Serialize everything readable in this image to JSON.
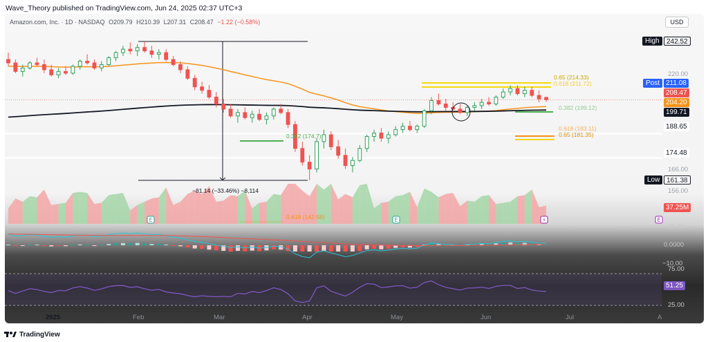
{
  "header": {
    "publisher_line": "Wave_Theory published on TradingView.com, Jun 24, 2025 02:37 UTC+3"
  },
  "symbol": {
    "name": "Amazon.com, Inc. · 1D · NASDAQ",
    "open": "O209.79",
    "high": "H210.39",
    "low": "L207.31",
    "close": "C208.47",
    "change": "−1.22 (−0.58%)"
  },
  "currency_button": "USD",
  "price_tags": {
    "high_label": "High",
    "high_value": "242.52",
    "post_label": "Post",
    "post_value": "211.08",
    "last": "208.47",
    "ema50": "204.20",
    "ema200": "199.71",
    "level_188": "188.65",
    "level_174": "174.48",
    "low_label": "Low",
    "low_value": "161.38",
    "volume": "37.25M",
    "rsi": "51.25"
  },
  "price_axis_ticks": [
    "220.00",
    "166.00",
    "156.00"
  ],
  "macd_axis_ticks": [
    "10.00",
    "0.0000",
    "−10.00"
  ],
  "rsi_axis_ticks": [
    "75.00",
    "25.00"
  ],
  "annotations": {
    "measure": "−81.14 (−33.46%) −8,114",
    "fib_0382": "0.382 (174.7)",
    "fib_0618": "0.618 (142.58)",
    "fib_065_top": "0.65 (214.33)",
    "fib_0618_top": "0.618 (211.72)",
    "fib_0382_mid": "0.382 (199.12)",
    "fib_0618_low": "0.618 (183.11)",
    "fib_065_low": "0.65 (181.35)"
  },
  "time_axis": [
    "2025",
    "Feb",
    "Mar",
    "Apr",
    "May",
    "Jun",
    "Jul",
    "A"
  ],
  "footer": {
    "brand": "TradingView"
  },
  "colors": {
    "up": "#26a69a",
    "up_bar": "#2e9e5b",
    "down": "#ef5350",
    "ema50": "#f7931a",
    "ema200": "#131722",
    "rsi": "#7e57c2",
    "post": "#2962ff",
    "fib_yellow": "#f5d90a",
    "fib_orange": "#f7931a",
    "fib_green": "#4caf50"
  },
  "chart_data": {
    "type": "candlestick",
    "title": "Amazon.com, Inc. · 1D · NASDAQ",
    "ylim": [
      150,
      250
    ],
    "support_resistance": [
      242.52,
      188.65,
      174.48,
      161.38
    ],
    "candles": [
      {
        "o": 232,
        "h": 236,
        "l": 228,
        "c": 230
      },
      {
        "o": 230,
        "h": 232,
        "l": 224,
        "c": 225
      },
      {
        "o": 225,
        "h": 229,
        "l": 222,
        "c": 227
      },
      {
        "o": 227,
        "h": 231,
        "l": 226,
        "c": 230
      },
      {
        "o": 230,
        "h": 233,
        "l": 228,
        "c": 229
      },
      {
        "o": 229,
        "h": 232,
        "l": 224,
        "c": 226
      },
      {
        "o": 226,
        "h": 229,
        "l": 222,
        "c": 223
      },
      {
        "o": 223,
        "h": 227,
        "l": 221,
        "c": 225
      },
      {
        "o": 225,
        "h": 228,
        "l": 223,
        "c": 224
      },
      {
        "o": 224,
        "h": 229,
        "l": 223,
        "c": 228
      },
      {
        "o": 228,
        "h": 232,
        "l": 226,
        "c": 231
      },
      {
        "o": 231,
        "h": 235,
        "l": 229,
        "c": 230
      },
      {
        "o": 230,
        "h": 232,
        "l": 226,
        "c": 227
      },
      {
        "o": 227,
        "h": 231,
        "l": 225,
        "c": 229
      },
      {
        "o": 229,
        "h": 234,
        "l": 228,
        "c": 233
      },
      {
        "o": 233,
        "h": 237,
        "l": 231,
        "c": 236
      },
      {
        "o": 236,
        "h": 240,
        "l": 234,
        "c": 238
      },
      {
        "o": 238,
        "h": 242,
        "l": 235,
        "c": 237
      },
      {
        "o": 237,
        "h": 241,
        "l": 234,
        "c": 239
      },
      {
        "o": 239,
        "h": 242.5,
        "l": 236,
        "c": 237
      },
      {
        "o": 237,
        "h": 240,
        "l": 233,
        "c": 235
      },
      {
        "o": 235,
        "h": 238,
        "l": 232,
        "c": 236
      },
      {
        "o": 236,
        "h": 238,
        "l": 231,
        "c": 232
      },
      {
        "o": 232,
        "h": 234,
        "l": 228,
        "c": 229
      },
      {
        "o": 229,
        "h": 231,
        "l": 224,
        "c": 226
      },
      {
        "o": 226,
        "h": 228,
        "l": 220,
        "c": 221
      },
      {
        "o": 221,
        "h": 223,
        "l": 214,
        "c": 216
      },
      {
        "o": 216,
        "h": 219,
        "l": 212,
        "c": 214
      },
      {
        "o": 214,
        "h": 217,
        "l": 209,
        "c": 210
      },
      {
        "o": 210,
        "h": 213,
        "l": 204,
        "c": 206
      },
      {
        "o": 206,
        "h": 209,
        "l": 201,
        "c": 203
      },
      {
        "o": 203,
        "h": 206,
        "l": 198,
        "c": 199
      },
      {
        "o": 199,
        "h": 203,
        "l": 195,
        "c": 201
      },
      {
        "o": 201,
        "h": 204,
        "l": 197,
        "c": 198
      },
      {
        "o": 198,
        "h": 202,
        "l": 195,
        "c": 200
      },
      {
        "o": 200,
        "h": 203,
        "l": 196,
        "c": 197
      },
      {
        "o": 197,
        "h": 201,
        "l": 194,
        "c": 199
      },
      {
        "o": 199,
        "h": 204,
        "l": 197,
        "c": 203
      },
      {
        "o": 203,
        "h": 206,
        "l": 200,
        "c": 201
      },
      {
        "o": 201,
        "h": 203,
        "l": 192,
        "c": 194
      },
      {
        "o": 194,
        "h": 196,
        "l": 178,
        "c": 180
      },
      {
        "o": 180,
        "h": 184,
        "l": 170,
        "c": 172
      },
      {
        "o": 172,
        "h": 176,
        "l": 161.4,
        "c": 168
      },
      {
        "o": 168,
        "h": 186,
        "l": 166,
        "c": 184
      },
      {
        "o": 184,
        "h": 191,
        "l": 180,
        "c": 188
      },
      {
        "o": 188,
        "h": 190,
        "l": 179,
        "c": 181
      },
      {
        "o": 181,
        "h": 185,
        "l": 174,
        "c": 176
      },
      {
        "o": 176,
        "h": 180,
        "l": 168,
        "c": 170
      },
      {
        "o": 170,
        "h": 175,
        "l": 166,
        "c": 173
      },
      {
        "o": 173,
        "h": 182,
        "l": 172,
        "c": 180
      },
      {
        "o": 180,
        "h": 188,
        "l": 178,
        "c": 187
      },
      {
        "o": 187,
        "h": 191,
        "l": 184,
        "c": 189
      },
      {
        "o": 189,
        "h": 192,
        "l": 184,
        "c": 186
      },
      {
        "o": 186,
        "h": 190,
        "l": 183,
        "c": 188
      },
      {
        "o": 188,
        "h": 193,
        "l": 187,
        "c": 191
      },
      {
        "o": 191,
        "h": 195,
        "l": 189,
        "c": 193
      },
      {
        "o": 193,
        "h": 196,
        "l": 190,
        "c": 191
      },
      {
        "o": 191,
        "h": 194,
        "l": 189,
        "c": 193
      },
      {
        "o": 193,
        "h": 203,
        "l": 192,
        "c": 202
      },
      {
        "o": 202,
        "h": 210,
        "l": 200,
        "c": 208
      },
      {
        "o": 208,
        "h": 212,
        "l": 205,
        "c": 206
      },
      {
        "o": 206,
        "h": 209,
        "l": 202,
        "c": 204
      },
      {
        "o": 204,
        "h": 207,
        "l": 201,
        "c": 203
      },
      {
        "o": 203,
        "h": 206,
        "l": 200,
        "c": 201
      },
      {
        "o": 201,
        "h": 205,
        "l": 199,
        "c": 204
      },
      {
        "o": 204,
        "h": 207,
        "l": 202,
        "c": 205
      },
      {
        "o": 205,
        "h": 209,
        "l": 203,
        "c": 207
      },
      {
        "o": 207,
        "h": 210,
        "l": 205,
        "c": 206
      },
      {
        "o": 206,
        "h": 211,
        "l": 205,
        "c": 210
      },
      {
        "o": 210,
        "h": 215,
        "l": 209,
        "c": 213
      },
      {
        "o": 213,
        "h": 217,
        "l": 211,
        "c": 215
      },
      {
        "o": 215,
        "h": 217,
        "l": 211,
        "c": 212
      },
      {
        "o": 212,
        "h": 216,
        "l": 210,
        "c": 214
      },
      {
        "o": 214,
        "h": 216,
        "l": 210,
        "c": 211
      },
      {
        "o": 211,
        "h": 214,
        "l": 207,
        "c": 209
      },
      {
        "o": 209.8,
        "h": 210.4,
        "l": 207.3,
        "c": 208.5
      }
    ]
  }
}
